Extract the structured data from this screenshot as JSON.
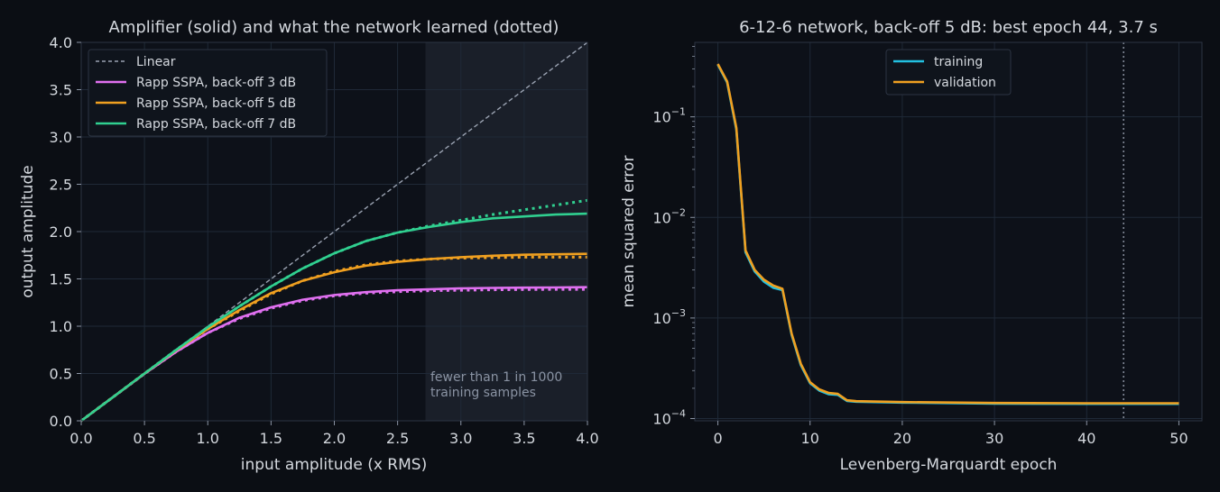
{
  "colors": {
    "background": "#0b0e14",
    "grid": "#1f2937",
    "axis": "#2c3442",
    "linear": "#9aa2b1",
    "backoff_3": "#e070f0",
    "backoff_5": "#f0a020",
    "backoff_7": "#30d090",
    "training": "#22c0e0",
    "validation": "#f0a020",
    "shaded_region": "#1a1f29"
  },
  "chart_data": [
    {
      "type": "line",
      "title": "Amplifier (solid) and what the network learned (dotted)",
      "xlabel": "input amplitude (x RMS)",
      "ylabel": "output amplitude",
      "xlim": [
        0,
        4
      ],
      "ylim": [
        0,
        4
      ],
      "xticks": [
        "0.0",
        "0.5",
        "1.0",
        "1.5",
        "2.0",
        "2.5",
        "3.0",
        "3.5",
        "4.0"
      ],
      "yticks": [
        "0.0",
        "0.5",
        "1.0",
        "1.5",
        "2.0",
        "2.5",
        "3.0",
        "3.5",
        "4.0"
      ],
      "grid": true,
      "legend_position": "top-left",
      "shaded_region": {
        "x_from": 2.72,
        "x_to": 4.0,
        "label_lines": [
          "fewer than 1 in 1000",
          "training samples"
        ]
      },
      "x": [
        0,
        0.25,
        0.5,
        0.75,
        1.0,
        1.25,
        1.5,
        1.75,
        2.0,
        2.25,
        2.5,
        2.75,
        3.0,
        3.25,
        3.5,
        3.75,
        4.0
      ],
      "series": [
        {
          "name": "Linear",
          "style": "dashed",
          "values": [
            0,
            0.25,
            0.5,
            0.75,
            1.0,
            1.25,
            1.5,
            1.75,
            2.0,
            2.25,
            2.5,
            2.75,
            3.0,
            3.25,
            3.5,
            3.75,
            4.0
          ]
        },
        {
          "name": "Rapp SSPA, back-off 3 dB",
          "style": "solid",
          "values": [
            0,
            0.25,
            0.497,
            0.73,
            0.93,
            1.09,
            1.2,
            1.28,
            1.33,
            1.36,
            1.38,
            1.39,
            1.4,
            1.405,
            1.408,
            1.41,
            1.412
          ]
        },
        {
          "name": "Rapp SSPA, back-off 3 dB (network)",
          "style": "dotted",
          "values": [
            0,
            0.25,
            0.497,
            0.73,
            0.93,
            1.08,
            1.19,
            1.27,
            1.32,
            1.35,
            1.365,
            1.375,
            1.38,
            1.385,
            1.388,
            1.39,
            1.39
          ]
        },
        {
          "name": "Rapp SSPA, back-off 5 dB",
          "style": "solid",
          "values": [
            0,
            0.25,
            0.499,
            0.745,
            0.97,
            1.17,
            1.35,
            1.48,
            1.57,
            1.64,
            1.68,
            1.71,
            1.73,
            1.745,
            1.755,
            1.76,
            1.765
          ]
        },
        {
          "name": "Rapp SSPA, back-off 5 dB (network)",
          "style": "dotted",
          "values": [
            0,
            0.25,
            0.499,
            0.745,
            0.97,
            1.16,
            1.34,
            1.48,
            1.58,
            1.65,
            1.69,
            1.71,
            1.72,
            1.725,
            1.73,
            1.73,
            1.73
          ]
        },
        {
          "name": "Rapp SSPA, back-off 7 dB",
          "style": "solid",
          "values": [
            0,
            0.25,
            0.5,
            0.75,
            0.99,
            1.21,
            1.42,
            1.61,
            1.77,
            1.9,
            1.99,
            2.05,
            2.1,
            2.14,
            2.16,
            2.18,
            2.19
          ]
        },
        {
          "name": "Rapp SSPA, back-off 7 dB (network)",
          "style": "dotted",
          "values": [
            0,
            0.25,
            0.5,
            0.75,
            0.99,
            1.21,
            1.42,
            1.61,
            1.77,
            1.9,
            1.99,
            2.06,
            2.12,
            2.18,
            2.23,
            2.28,
            2.33
          ]
        }
      ]
    },
    {
      "type": "line",
      "title": "6-12-6 network, back-off 5 dB: best epoch 44, 3.7 s",
      "xlabel": "Levenberg-Marquardt epoch",
      "ylabel": "mean squared error",
      "xlim": [
        -2.5,
        52.5
      ],
      "ylim": [
        9.5e-05,
        0.55
      ],
      "yscale": "log",
      "xticks": [
        "0",
        "10",
        "20",
        "30",
        "40",
        "50"
      ],
      "yticks": [
        {
          "value": 0.1,
          "base": "10",
          "exp": "−1"
        },
        {
          "value": 0.01,
          "base": "10",
          "exp": "−2"
        },
        {
          "value": 0.001,
          "base": "10",
          "exp": "−3"
        },
        {
          "value": 0.0001,
          "base": "10",
          "exp": "−4"
        }
      ],
      "grid": true,
      "legend_position": "top-center",
      "best_epoch_marker": 44,
      "x": [
        0,
        1,
        2,
        3,
        4,
        5,
        6,
        7,
        8,
        9,
        10,
        11,
        12,
        13,
        14,
        15,
        20,
        30,
        40,
        50
      ],
      "series": [
        {
          "name": "training",
          "values": [
            0.33,
            0.22,
            0.075,
            0.0045,
            0.0029,
            0.0023,
            0.002,
            0.0019,
            0.00068,
            0.00034,
            0.000225,
            0.00019,
            0.000175,
            0.000172,
            0.00015,
            0.000147,
            0.000144,
            0.000141,
            0.00014,
            0.00014
          ]
        },
        {
          "name": "validation",
          "values": [
            0.335,
            0.225,
            0.078,
            0.0047,
            0.003,
            0.0024,
            0.0021,
            0.00195,
            0.0007,
            0.00035,
            0.00023,
            0.000195,
            0.00018,
            0.000176,
            0.000152,
            0.000149,
            0.000146,
            0.000143,
            0.000142,
            0.000142
          ]
        }
      ]
    }
  ]
}
